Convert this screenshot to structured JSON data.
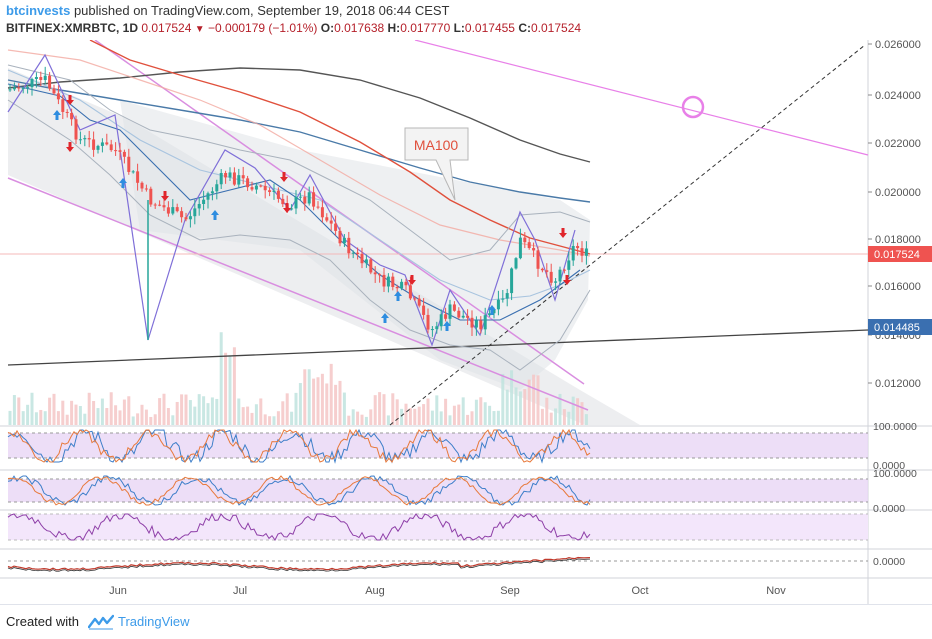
{
  "header": {
    "author": "btcinvests",
    "published_text": "published on TradingView.com, September 19, 2018 06:44 CEST",
    "symbol": "BITFINEX:XMRBTC, 1D",
    "last": "0.017524",
    "change": "−0.000179 (−1.01%)",
    "open_label": "O:",
    "open": "0.017638",
    "high_label": "H:",
    "high": "0.017770",
    "low_label": "L:",
    "low": "0.017455",
    "close_label": "C:",
    "close": "0.017524"
  },
  "price_axis": {
    "ticks": [
      "0.026000",
      "0.024000",
      "0.022000",
      "0.020000",
      "0.018000",
      "0.016000",
      "0.014000",
      "0.012000"
    ],
    "current_price": "0.017524",
    "support_price": "0.014485"
  },
  "annotation": {
    "label": "MA100"
  },
  "indicator_axes": {
    "pane1": [
      "100.0000",
      "0.0000"
    ],
    "pane2": [
      "100.0000",
      "0.0000"
    ],
    "pane4": [
      "0.0000"
    ]
  },
  "time_axis": {
    "labels": [
      "Jun",
      "Jul",
      "Aug",
      "Sep",
      "Oct",
      "Nov"
    ]
  },
  "footer": {
    "created_with": "Created with",
    "brand": "TradingView"
  },
  "colors": {
    "up": "#26a69a",
    "down": "#ef5350",
    "trendline": "#e880e8",
    "ma_blue": "#4a7aa8",
    "ma_red": "#e0503c",
    "ma_dark": "#555555",
    "zigzag": "#7f6fd8"
  }
}
